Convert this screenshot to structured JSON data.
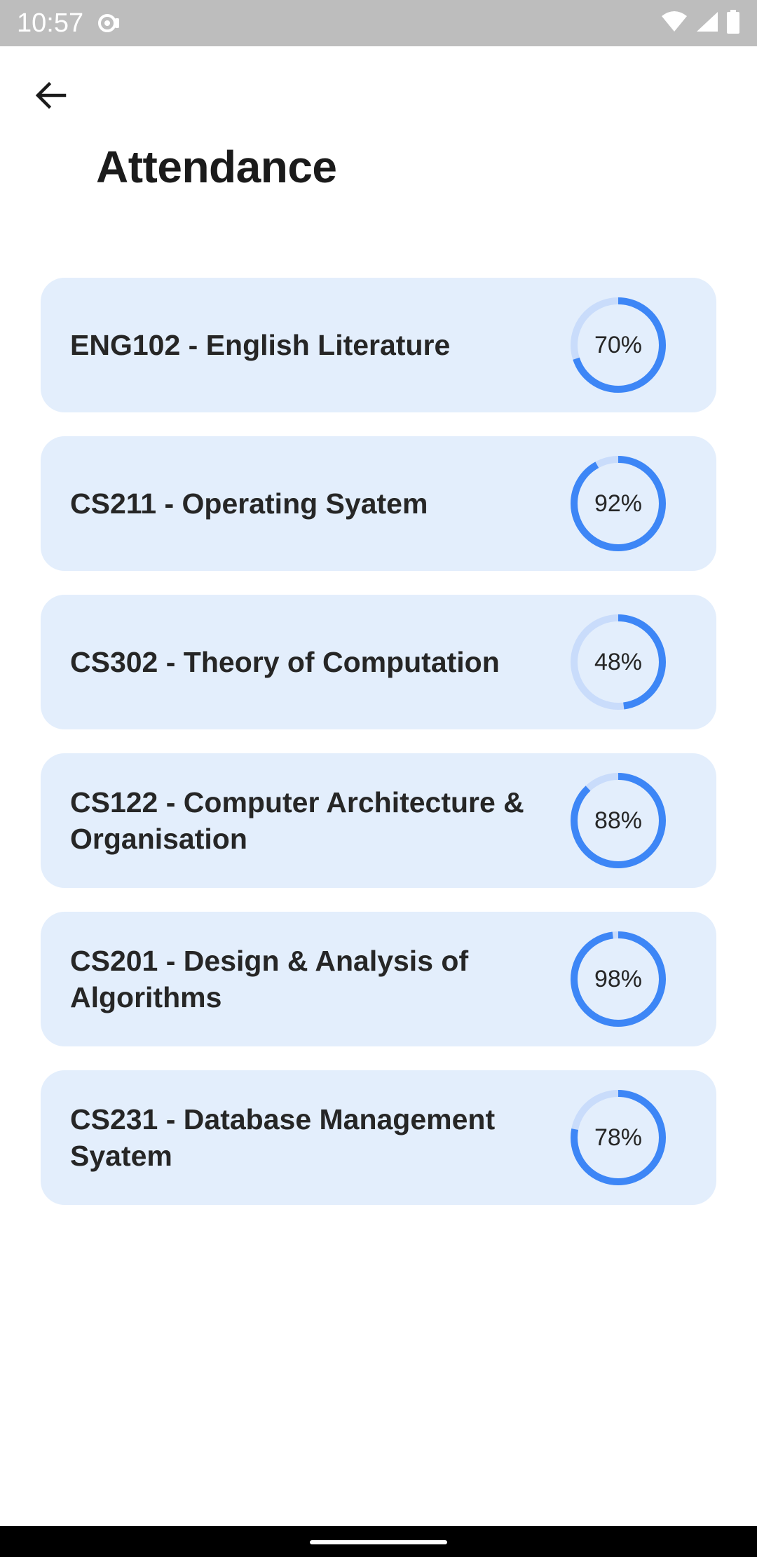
{
  "status_bar": {
    "time": "10:57",
    "icons": [
      "notification-icon",
      "wifi-icon",
      "signal-icon",
      "battery-icon"
    ]
  },
  "header": {
    "back_icon": "arrow-left-icon",
    "title": "Attendance"
  },
  "colors": {
    "card_background": "#e3eefc",
    "ring_track": "#c9dcfb",
    "ring_progress": "#3d86f6"
  },
  "courses": [
    {
      "name": "ENG102 - English Literature",
      "percent_label": "70%",
      "percent": 70
    },
    {
      "name": "CS211 - Operating Syatem",
      "percent_label": "92%",
      "percent": 92
    },
    {
      "name": "CS302 - Theory of Computation",
      "percent_label": "48%",
      "percent": 48
    },
    {
      "name": "CS122 - Computer Architecture & Organisation",
      "percent_label": "88%",
      "percent": 88
    },
    {
      "name": "CS201 - Design & Analysis of Algorithms",
      "percent_label": "98%",
      "percent": 98
    },
    {
      "name": "CS231 - Database Management Syatem",
      "percent_label": "78%",
      "percent": 78
    }
  ]
}
